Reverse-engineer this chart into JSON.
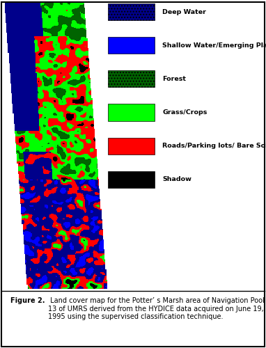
{
  "legend_items": [
    {
      "label": "Deep Water",
      "color": "#00008B",
      "hatch": "...."
    },
    {
      "label": "Shallow Water/Emerging Plant",
      "color": "#0000FF",
      "hatch": ""
    },
    {
      "label": "Forest",
      "color": "#006400",
      "hatch": "...."
    },
    {
      "label": "Grass/Crops",
      "color": "#00FF00",
      "hatch": ""
    },
    {
      "label": "Roads/Parking lots/ Bare Soil",
      "color": "#FF0000",
      "hatch": ""
    },
    {
      "label": "Shadow",
      "color": "#000000",
      "hatch": ""
    }
  ],
  "caption_bold": "Figure 2.",
  "caption_normal": " Land cover map for the Potter’ s Marsh area of Navigation Pool 13 of UMRS derived from the HYDICE data acquired on June 19, 1995 using the supervised classification technique.",
  "bg_color": "#ffffff",
  "caption_bg": "#d3d3d3",
  "fig_width": 3.82,
  "fig_height": 5.0
}
